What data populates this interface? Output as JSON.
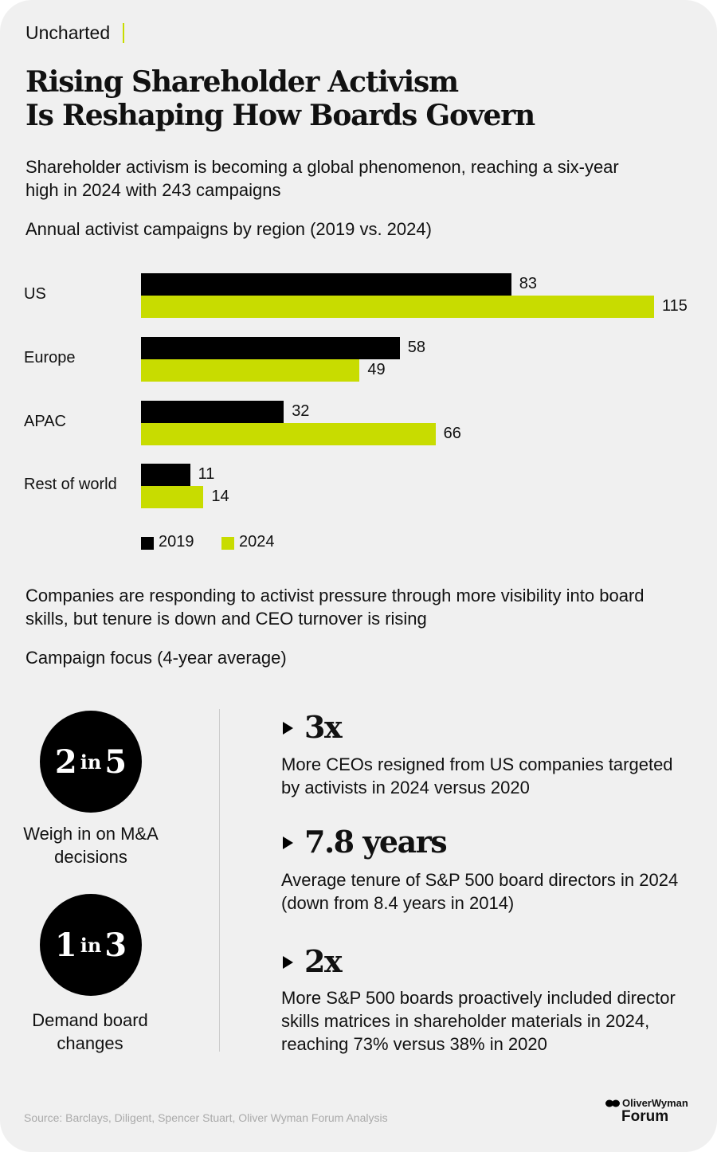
{
  "brand": "Uncharted",
  "title_line1": "Rising Shareholder Activism",
  "title_line2": "Is Reshaping How Boards Govern",
  "subtitle": "Shareholder activism is becoming a global phenomenon, reaching a six-year high in 2024 with 243 campaigns",
  "colors": {
    "2019": "#000000",
    "2024": "#c8dc00",
    "background": "#f0f0f0"
  },
  "chart_data": {
    "type": "bar",
    "orientation": "horizontal",
    "title": "Annual activist campaigns by region (2019 vs. 2024)",
    "categories": [
      "US",
      "Europe",
      "APAC",
      "Rest of world"
    ],
    "series": [
      {
        "name": "2019",
        "values": [
          83,
          58,
          32,
          11
        ]
      },
      {
        "name": "2024",
        "values": [
          115,
          49,
          66,
          14
        ]
      }
    ],
    "legend": "bottom-left",
    "grid": false
  },
  "section2_subtitle": "Companies are responding to activist pressure through more visibility into board skills, but tenure is down and CEO turnover is rising",
  "focus_title": "Campaign focus (4-year average)",
  "focus": [
    {
      "num": "2",
      "in": "in",
      "den": "5",
      "caption": "Weigh in on M&A decisions"
    },
    {
      "num": "1",
      "in": "in",
      "den": "3",
      "caption": "Demand board changes"
    }
  ],
  "stats": [
    {
      "figure": "3x",
      "text": "More CEOs resigned from US companies targeted by activists in 2024 versus 2020"
    },
    {
      "figure": "7.8 years",
      "text": "Average tenure of S&P 500 board directors in 2024 (down from 8.4 years in 2014)"
    },
    {
      "figure": "2x",
      "text": "More S&P 500 boards proactively included director skills matrices in shareholder materials in 2024, reaching 73% versus 38% in 2020"
    }
  ],
  "source": "Source: Barclays, Diligent, Spencer Stuart, Oliver Wyman Forum Analysis",
  "logo": {
    "line1": "OliverWyman",
    "line2": "Forum"
  }
}
